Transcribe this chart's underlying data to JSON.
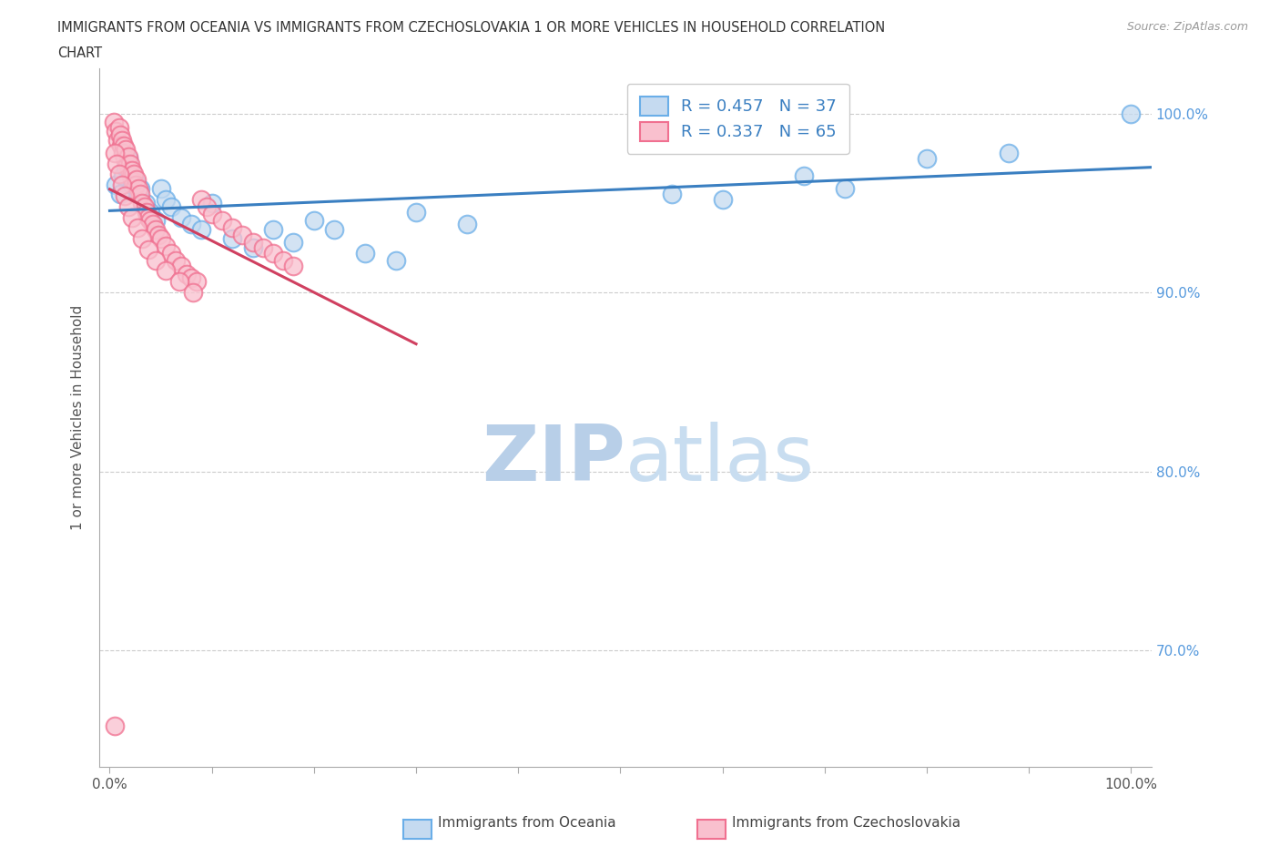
{
  "title_line1": "IMMIGRANTS FROM OCEANIA VS IMMIGRANTS FROM CZECHOSLOVAKIA 1 OR MORE VEHICLES IN HOUSEHOLD CORRELATION",
  "title_line2": "CHART",
  "source": "Source: ZipAtlas.com",
  "ylabel": "1 or more Vehicles in Household",
  "ytick_labels": [
    "100.0%",
    "90.0%",
    "80.0%",
    "70.0%"
  ],
  "ytick_values": [
    1.0,
    0.9,
    0.8,
    0.7
  ],
  "xlim": [
    -0.01,
    1.02
  ],
  "ylim": [
    0.635,
    1.025
  ],
  "R_oceania": 0.457,
  "N_oceania": 37,
  "R_czech": 0.337,
  "N_czech": 65,
  "color_oceania_fill": "#c5daf0",
  "color_oceania_edge": "#6aaee8",
  "color_czech_fill": "#f9c0ce",
  "color_czech_edge": "#f07090",
  "color_oceania_line": "#3a7fc1",
  "color_czech_line": "#d04060",
  "watermark_zip_color": "#b8cfe8",
  "watermark_atlas_color": "#c8ddf0",
  "grid_color": "#cccccc",
  "title_color": "#333333",
  "source_color": "#999999",
  "ytick_color": "#5599dd",
  "xtick_color": "#555555",
  "ylabel_color": "#555555",
  "legend_text_color": "#3a7fc1",
  "oceania_x": [
    0.006,
    0.01,
    0.013,
    0.016,
    0.018,
    0.02,
    0.022,
    0.025,
    0.028,
    0.03,
    0.035,
    0.04,
    0.045,
    0.05,
    0.055,
    0.06,
    0.07,
    0.08,
    0.09,
    0.1,
    0.12,
    0.14,
    0.16,
    0.18,
    0.2,
    0.22,
    0.25,
    0.28,
    0.3,
    0.35,
    0.55,
    0.6,
    0.68,
    0.72,
    0.8,
    0.88,
    1.0
  ],
  "oceania_y": [
    0.96,
    0.955,
    0.965,
    0.97,
    0.975,
    0.968,
    0.96,
    0.962,
    0.955,
    0.958,
    0.95,
    0.945,
    0.94,
    0.958,
    0.952,
    0.948,
    0.942,
    0.938,
    0.935,
    0.95,
    0.93,
    0.925,
    0.935,
    0.928,
    0.94,
    0.935,
    0.922,
    0.918,
    0.945,
    0.938,
    0.955,
    0.952,
    0.965,
    0.958,
    0.975,
    0.978,
    1.0
  ],
  "czech_x": [
    0.004,
    0.006,
    0.008,
    0.009,
    0.01,
    0.011,
    0.012,
    0.013,
    0.014,
    0.015,
    0.016,
    0.017,
    0.018,
    0.019,
    0.02,
    0.021,
    0.022,
    0.023,
    0.024,
    0.025,
    0.026,
    0.028,
    0.03,
    0.032,
    0.034,
    0.036,
    0.038,
    0.04,
    0.042,
    0.045,
    0.048,
    0.05,
    0.055,
    0.06,
    0.065,
    0.07,
    0.075,
    0.08,
    0.085,
    0.09,
    0.095,
    0.1,
    0.11,
    0.12,
    0.13,
    0.14,
    0.15,
    0.16,
    0.17,
    0.18,
    0.005,
    0.007,
    0.009,
    0.012,
    0.015,
    0.018,
    0.022,
    0.027,
    0.032,
    0.038,
    0.045,
    0.055,
    0.068,
    0.082,
    0.005
  ],
  "czech_y": [
    0.995,
    0.99,
    0.985,
    0.992,
    0.988,
    0.982,
    0.985,
    0.978,
    0.982,
    0.975,
    0.98,
    0.972,
    0.976,
    0.968,
    0.972,
    0.965,
    0.968,
    0.962,
    0.966,
    0.96,
    0.963,
    0.958,
    0.955,
    0.95,
    0.948,
    0.945,
    0.942,
    0.94,
    0.938,
    0.935,
    0.932,
    0.93,
    0.926,
    0.922,
    0.918,
    0.915,
    0.91,
    0.908,
    0.906,
    0.952,
    0.948,
    0.944,
    0.94,
    0.936,
    0.932,
    0.928,
    0.925,
    0.922,
    0.918,
    0.915,
    0.978,
    0.972,
    0.966,
    0.96,
    0.954,
    0.948,
    0.942,
    0.936,
    0.93,
    0.924,
    0.918,
    0.912,
    0.906,
    0.9,
    0.658
  ]
}
